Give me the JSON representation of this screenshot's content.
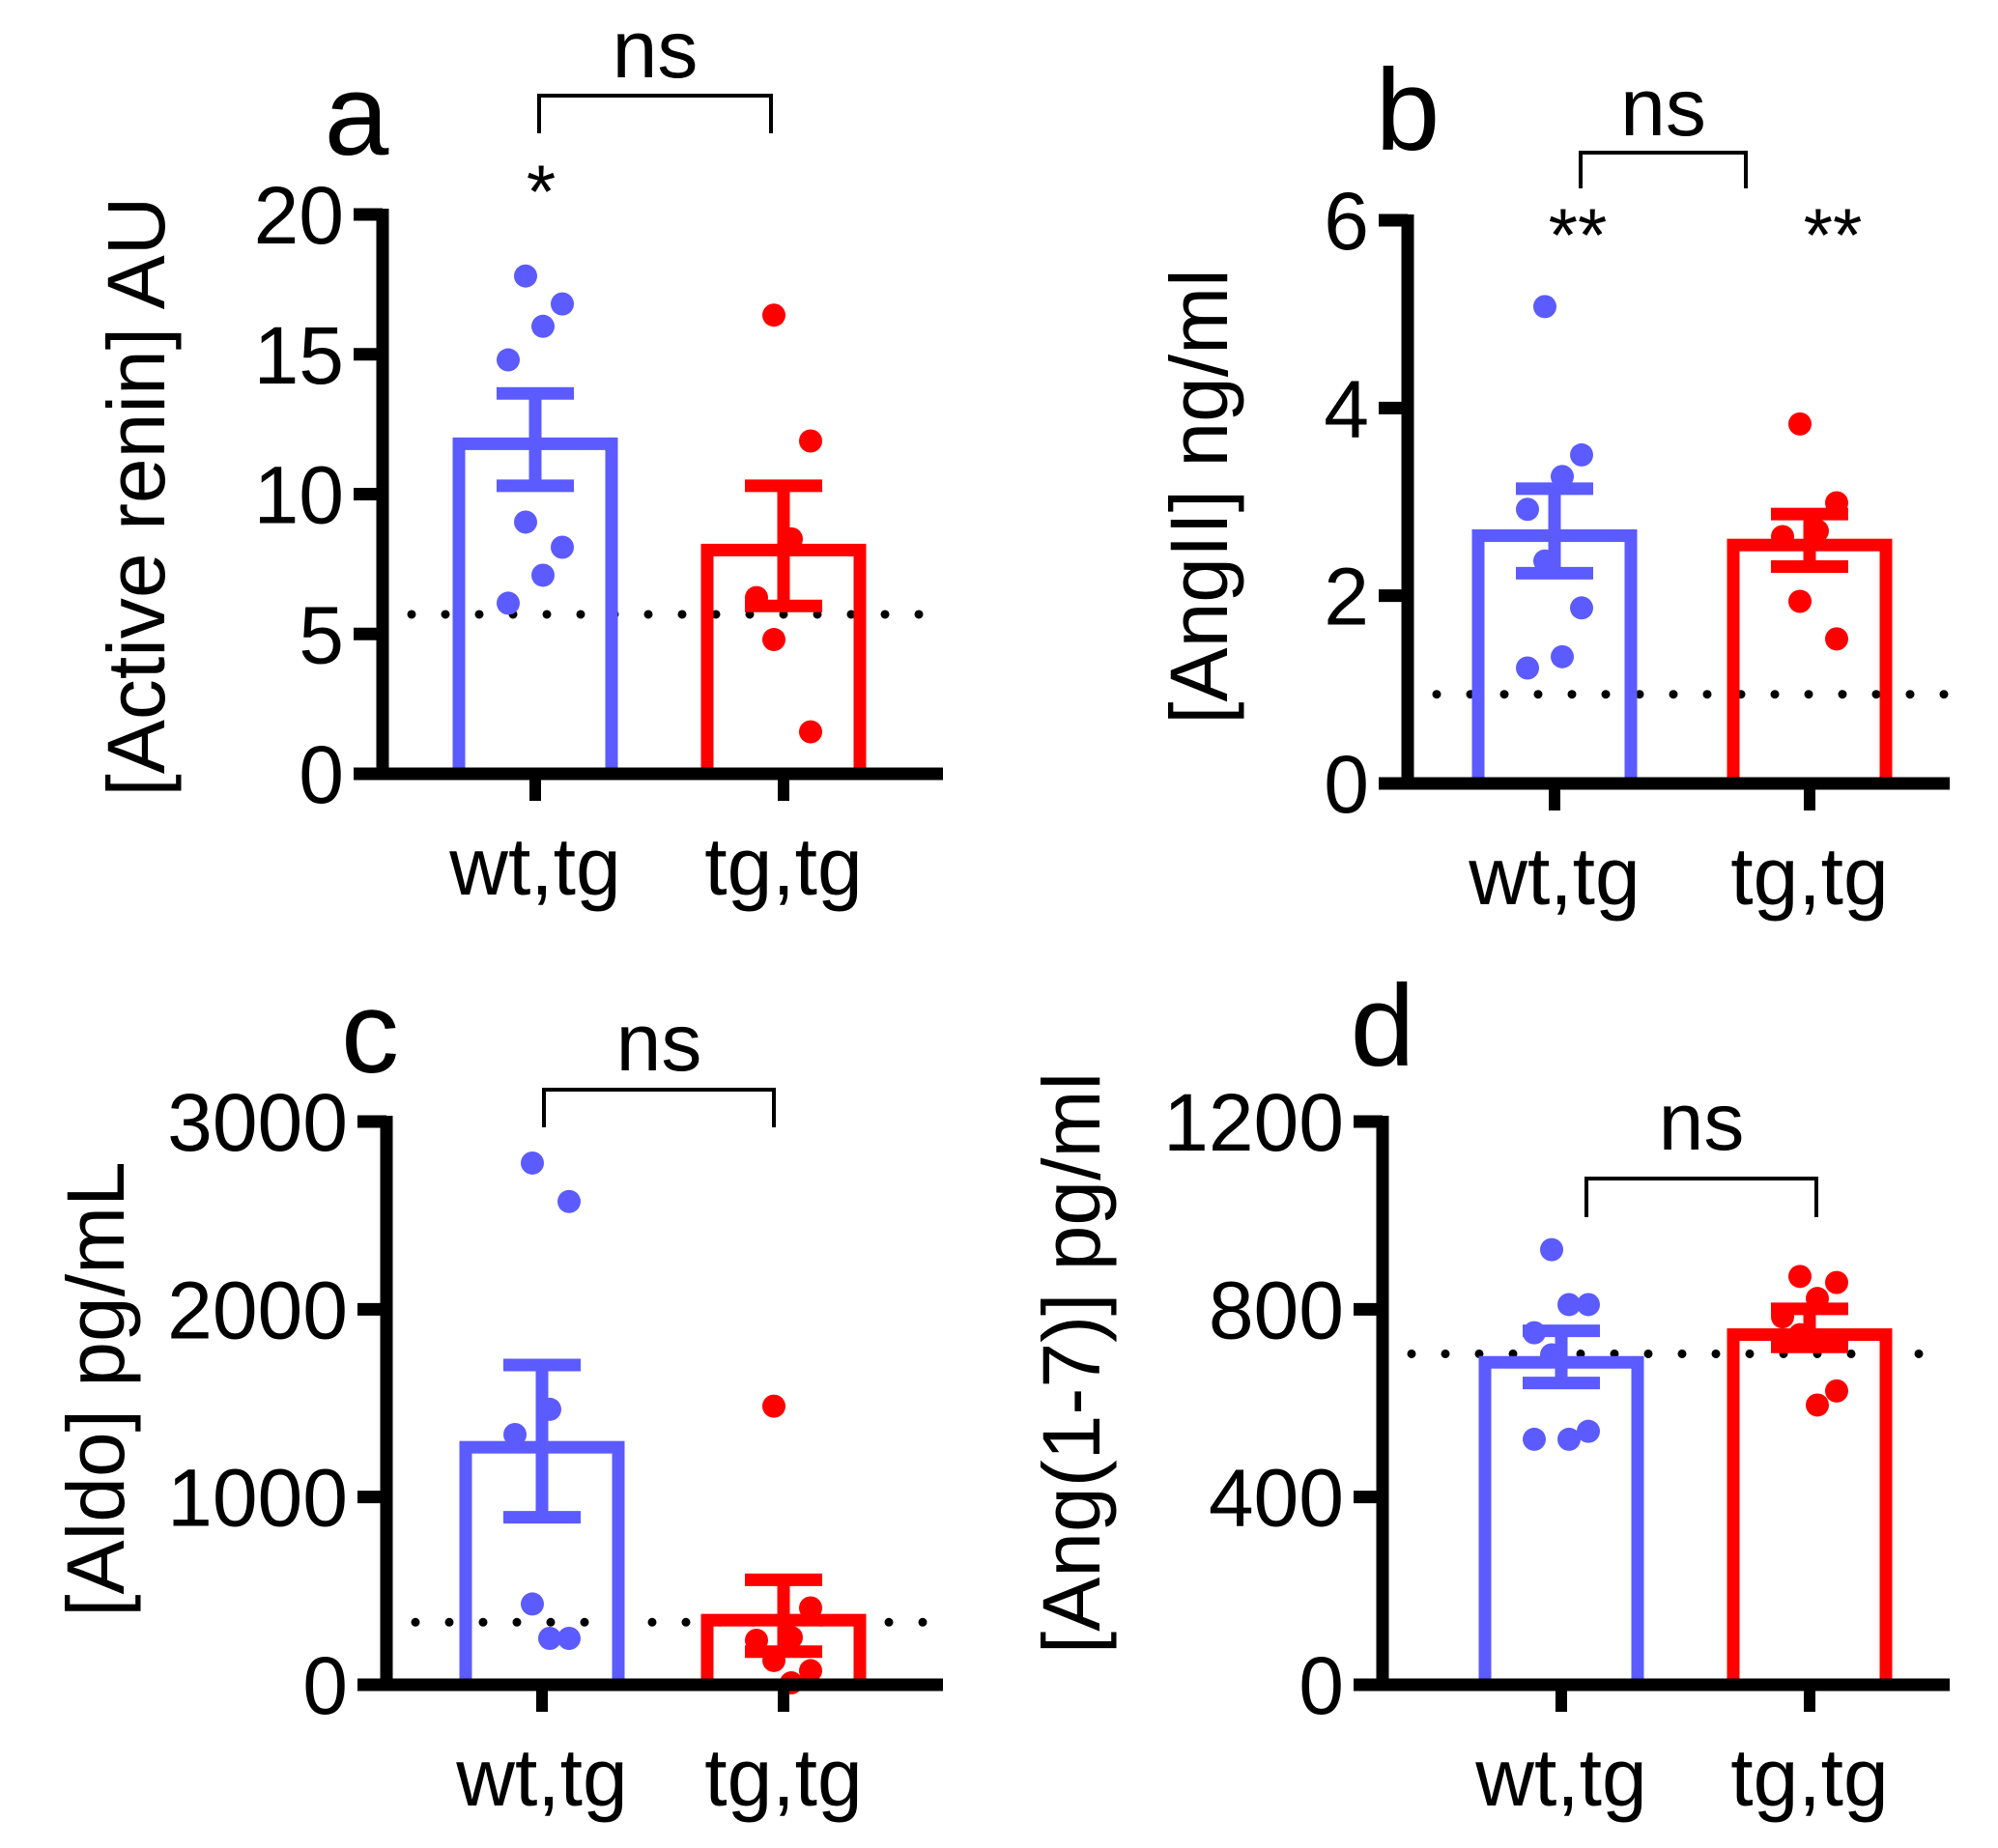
{
  "colors": {
    "wt_tg": "#5b5bff",
    "tg_tg": "#ff0000",
    "axis": "#000000"
  },
  "chart_data": [
    {
      "type": "bar",
      "panel": "a",
      "ylabel": "[Active renin] AU",
      "categories": [
        "wt,tg",
        "tg,tg"
      ],
      "ylim": [
        0,
        20
      ],
      "yticks": [
        0,
        5,
        10,
        15,
        20
      ],
      "reference_line": 5.7,
      "means": [
        11.8,
        8.0
      ],
      "sem_upper": [
        13.6,
        10.3
      ],
      "sem_lower": [
        10.3,
        6.0
      ],
      "points": [
        [
          17.8,
          16.8,
          16.0,
          14.8,
          9.0,
          8.1,
          7.1,
          6.1
        ],
        [
          16.4,
          11.9,
          8.4,
          6.3,
          4.8,
          1.5
        ]
      ],
      "bar_annotations": [
        "*",
        ""
      ],
      "comparison": "ns"
    },
    {
      "type": "bar",
      "panel": "b",
      "ylabel": "[AngII] ng/ml",
      "categories": [
        "wt,tg",
        "tg,tg"
      ],
      "ylim": [
        0,
        6
      ],
      "yticks": [
        0,
        2,
        4,
        6
      ],
      "reference_line": 0.95,
      "means": [
        2.64,
        2.54
      ],
      "sem_upper": [
        3.14,
        2.87
      ],
      "sem_lower": [
        2.24,
        2.31
      ],
      "points": [
        [
          5.08,
          3.5,
          3.27,
          2.92,
          2.37,
          1.87,
          1.35,
          1.23
        ],
        [
          3.83,
          2.99,
          2.69,
          2.63,
          1.94,
          1.54
        ]
      ],
      "bar_annotations": [
        "**",
        "**"
      ],
      "comparison": "ns"
    },
    {
      "type": "bar",
      "panel": "c",
      "ylabel": "[Aldo] pg/mL",
      "categories": [
        "wt,tg",
        "tg,tg"
      ],
      "ylim": [
        0,
        3000
      ],
      "yticks": [
        0,
        1000,
        2000,
        3000
      ],
      "reference_line": 333,
      "means": [
        1265,
        344
      ],
      "sem_upper": [
        1703,
        559
      ],
      "sem_lower": [
        892,
        176
      ],
      "points": [
        [
          2779,
          2574,
          1467,
          1333,
          430,
          247,
          247
        ],
        [
          1484,
          409,
          252,
          237,
          129,
          75,
          10
        ]
      ],
      "bar_annotations": [
        "",
        ""
      ],
      "comparison": "ns"
    },
    {
      "type": "bar",
      "panel": "d",
      "ylabel": "[Ang(1-7)] pg/ml",
      "categories": [
        "wt,tg",
        "tg,tg"
      ],
      "ylim": [
        0,
        1200
      ],
      "yticks": [
        0,
        400,
        800,
        1200
      ],
      "reference_line": 705,
      "means": [
        687,
        746
      ],
      "sem_upper": [
        754,
        801
      ],
      "sem_lower": [
        643,
        720
      ],
      "points": [
        [
          927,
          810,
          810,
          750,
          703,
          540,
          523,
          523
        ],
        [
          870,
          857,
          823,
          784,
          746,
          626,
          596
        ]
      ],
      "bar_annotations": [
        "",
        ""
      ],
      "comparison": "ns"
    }
  ]
}
